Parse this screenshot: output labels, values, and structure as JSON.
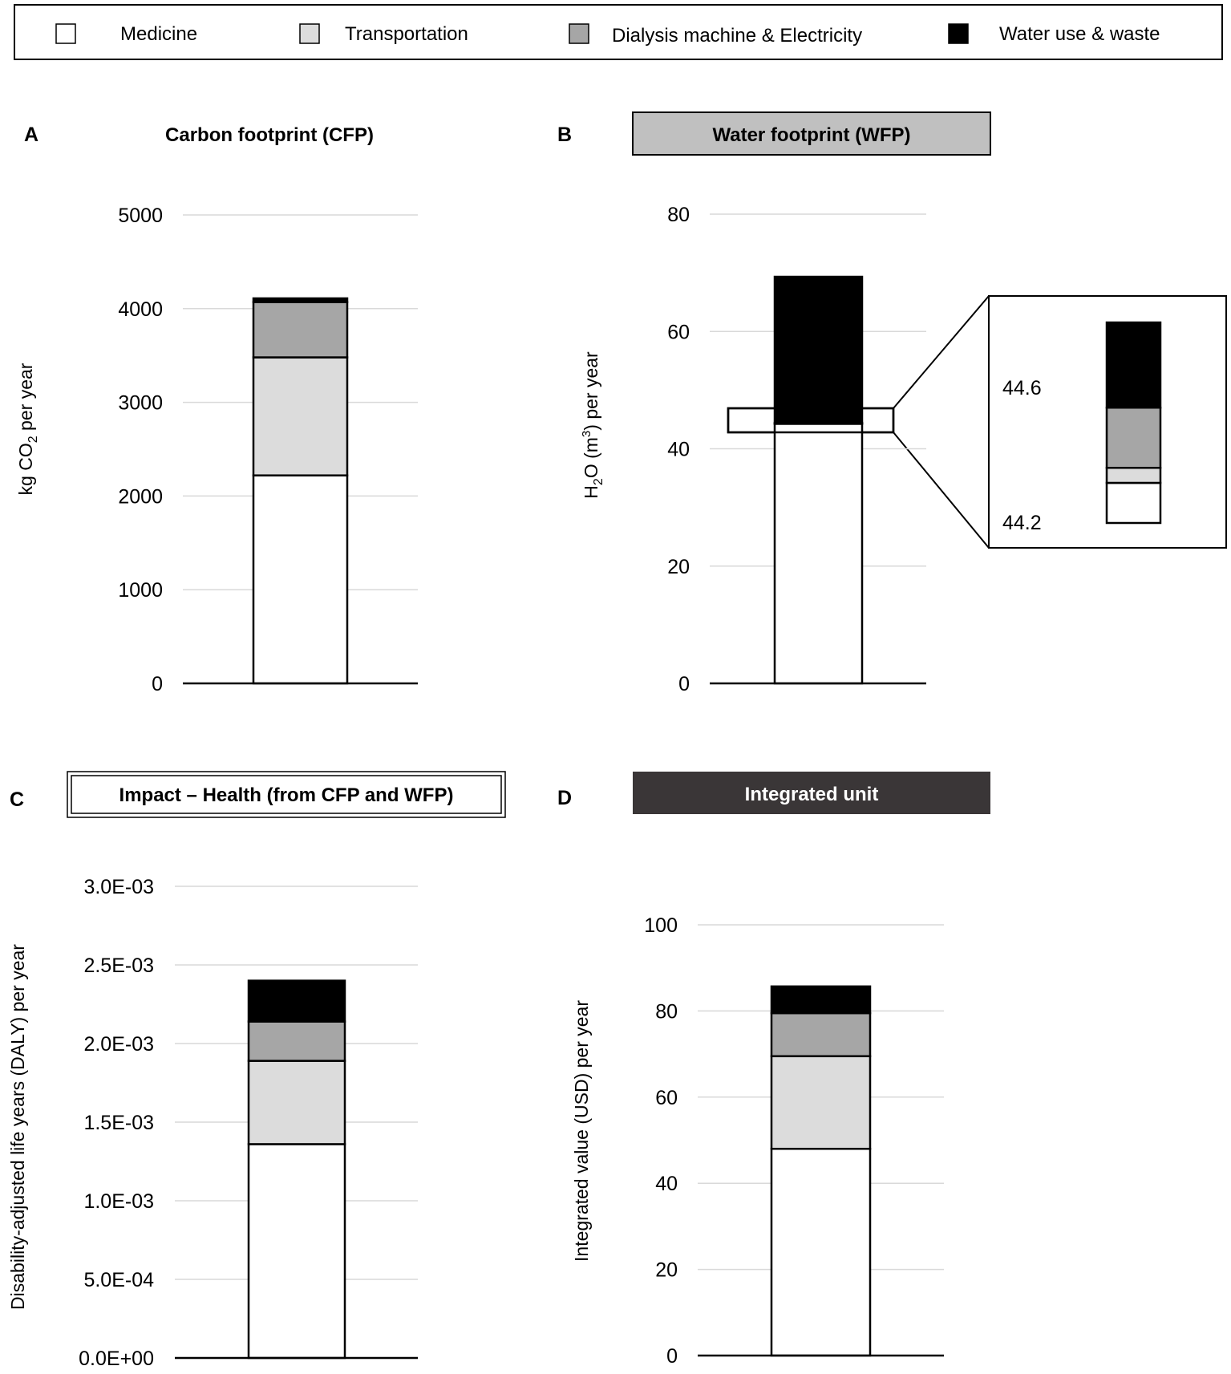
{
  "legend": {
    "items": [
      {
        "label": "Medicine",
        "color": "#ffffff"
      },
      {
        "label": "Transportation",
        "color": "#dcdcdc"
      },
      {
        "label": "Dialysis machine & Electricity",
        "color": "#a6a6a6"
      },
      {
        "label": "Water use & waste",
        "color": "#000000"
      }
    ]
  },
  "chart_data": [
    {
      "panel": "A",
      "type": "bar",
      "stacked": true,
      "title": "Carbon footprint (CFP)",
      "ylabel": {
        "pre": "kg CO",
        "sub": "2",
        "post": " per year"
      },
      "ylim": [
        0,
        5000
      ],
      "yticks": [
        0,
        1000,
        2000,
        3000,
        4000,
        5000
      ],
      "yticklabels": [
        "0",
        "1000",
        "2000",
        "3000",
        "4000",
        "5000"
      ],
      "grid": true,
      "series": [
        {
          "name": "Medicine",
          "values": [
            2220
          ]
        },
        {
          "name": "Transportation",
          "values": [
            1260
          ]
        },
        {
          "name": "Dialysis machine & Electricity",
          "values": [
            590
          ]
        },
        {
          "name": "Water use & waste",
          "values": [
            40
          ]
        }
      ]
    },
    {
      "panel": "B",
      "type": "bar",
      "stacked": true,
      "title": "Water footprint (WFP)",
      "ylabel": {
        "pre": "H",
        "sub": "2",
        "mid": "O (m",
        "sup": "3",
        "post": ") per year"
      },
      "ylim": [
        0,
        80
      ],
      "yticks": [
        0,
        20,
        40,
        60,
        80
      ],
      "yticklabels": [
        "0",
        "20",
        "40",
        "60",
        "80"
      ],
      "grid": true,
      "series": [
        {
          "name": "Medicine",
          "values": [
            44.28
          ]
        },
        {
          "name": "Transportation",
          "values": [
            0.03
          ]
        },
        {
          "name": "Dialysis machine & Electricity",
          "values": [
            0.12
          ]
        },
        {
          "name": "Water use & waste",
          "values": [
            24.9
          ]
        }
      ],
      "inset": {
        "ylim": [
          44.2,
          44.6
        ],
        "labels": [
          "44.6",
          "44.2"
        ]
      }
    },
    {
      "panel": "C",
      "type": "bar",
      "stacked": true,
      "title": "Impact – Health (from CFP and WFP)",
      "ylabel": {
        "pre": "Disability-adjusted life years (DALY) per year"
      },
      "ylim": [
        0,
        0.003
      ],
      "yticks": [
        0,
        0.0005,
        0.001,
        0.0015,
        0.002,
        0.0025,
        0.003
      ],
      "yticklabels": [
        "0.0E+00",
        "5.0E-04",
        "1.0E-03",
        "1.5E-03",
        "2.0E-03",
        "2.5E-03",
        "3.0E-03"
      ],
      "grid": true,
      "series": [
        {
          "name": "Medicine",
          "values": [
            0.00136
          ]
        },
        {
          "name": "Transportation",
          "values": [
            0.00053
          ]
        },
        {
          "name": "Dialysis machine & Electricity",
          "values": [
            0.00025
          ]
        },
        {
          "name": "Water use & waste",
          "values": [
            0.00026
          ]
        }
      ]
    },
    {
      "panel": "D",
      "type": "bar",
      "stacked": true,
      "title": "Integrated unit",
      "ylabel": {
        "pre": "Integrated value (USD) per year"
      },
      "ylim": [
        0,
        100
      ],
      "yticks": [
        0,
        20,
        40,
        60,
        80,
        100
      ],
      "yticklabels": [
        "0",
        "20",
        "40",
        "60",
        "80",
        "100"
      ],
      "grid": true,
      "series": [
        {
          "name": "Medicine",
          "values": [
            48
          ]
        },
        {
          "name": "Transportation",
          "values": [
            21.5
          ]
        },
        {
          "name": "Dialysis machine & Electricity",
          "values": [
            10
          ]
        },
        {
          "name": "Water use & waste",
          "values": [
            6.2
          ]
        }
      ]
    }
  ]
}
